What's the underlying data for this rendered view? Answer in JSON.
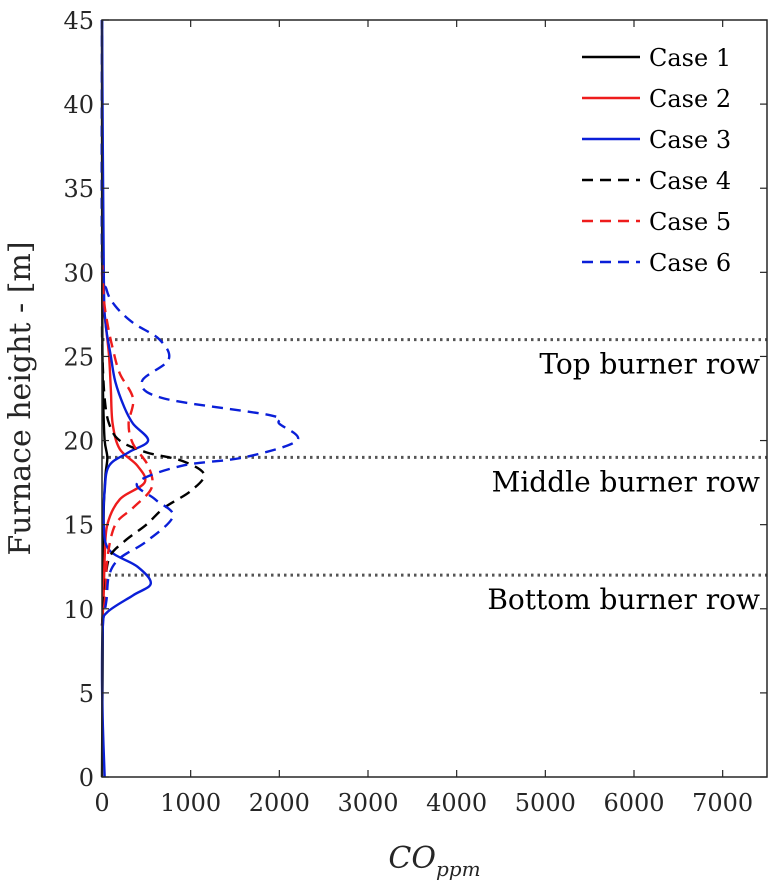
{
  "chart_data": {
    "type": "line",
    "xlabel_base": "CO",
    "xlabel_sub": "ppm",
    "ylabel": "Furnace height - [m]",
    "xlim": [
      0,
      7500
    ],
    "ylim": [
      0,
      45
    ],
    "xticks": [
      0,
      1000,
      2000,
      3000,
      4000,
      5000,
      6000,
      7000
    ],
    "yticks": [
      0,
      5,
      10,
      15,
      20,
      25,
      30,
      35,
      40,
      45
    ],
    "grid": false,
    "legend_position": "top-right",
    "reference_lines": [
      {
        "y": 26,
        "label": "Top burner row",
        "color": "#555555"
      },
      {
        "y": 19,
        "label": "Middle burner row",
        "color": "#555555"
      },
      {
        "y": 12,
        "label": "Bottom burner row",
        "color": "#555555"
      }
    ],
    "series": [
      {
        "name": "Case 1",
        "color": "#000000",
        "style": "solid",
        "points": [
          [
            0,
            0
          ],
          [
            5,
            5
          ],
          [
            10,
            10
          ],
          [
            15,
            13
          ],
          [
            20,
            16
          ],
          [
            40,
            18
          ],
          [
            60,
            19
          ],
          [
            30,
            20
          ],
          [
            15,
            22
          ],
          [
            5,
            25
          ],
          [
            2,
            30
          ],
          [
            0,
            45
          ]
        ]
      },
      {
        "name": "Case 2",
        "color": "#ee1c1c",
        "style": "solid",
        "points": [
          [
            0,
            9
          ],
          [
            20,
            11
          ],
          [
            30,
            13
          ],
          [
            60,
            15
          ],
          [
            200,
            16.5
          ],
          [
            480,
            17.5
          ],
          [
            400,
            18.5
          ],
          [
            200,
            19.5
          ],
          [
            120,
            21
          ],
          [
            100,
            23
          ],
          [
            80,
            25
          ],
          [
            50,
            26.5
          ],
          [
            20,
            28
          ],
          [
            0,
            30
          ]
        ]
      },
      {
        "name": "Case 3",
        "color": "#0a1fd8",
        "style": "solid",
        "points": [
          [
            30,
            0
          ],
          [
            10,
            3
          ],
          [
            0,
            6
          ],
          [
            10,
            9
          ],
          [
            60,
            9.8
          ],
          [
            350,
            10.8
          ],
          [
            550,
            11.5
          ],
          [
            400,
            12.5
          ],
          [
            80,
            13.5
          ],
          [
            20,
            15
          ],
          [
            30,
            17
          ],
          [
            80,
            18.5
          ],
          [
            300,
            19.3
          ],
          [
            520,
            20
          ],
          [
            350,
            21
          ],
          [
            250,
            22
          ],
          [
            150,
            23.5
          ],
          [
            100,
            25
          ],
          [
            40,
            27
          ],
          [
            20,
            30
          ],
          [
            0,
            45
          ]
        ]
      },
      {
        "name": "Case 4",
        "color": "#000000",
        "style": "dashed",
        "points": [
          [
            0,
            9
          ],
          [
            30,
            11
          ],
          [
            80,
            13
          ],
          [
            250,
            14
          ],
          [
            500,
            15
          ],
          [
            700,
            16
          ],
          [
            1000,
            17
          ],
          [
            1150,
            18
          ],
          [
            900,
            18.8
          ],
          [
            500,
            19.3
          ],
          [
            200,
            20
          ],
          [
            80,
            21
          ],
          [
            30,
            22.5
          ],
          [
            5,
            25
          ],
          [
            0,
            27
          ]
        ]
      },
      {
        "name": "Case 5",
        "color": "#ee1c1c",
        "style": "dashed",
        "points": [
          [
            0,
            9
          ],
          [
            40,
            11
          ],
          [
            60,
            13
          ],
          [
            150,
            15
          ],
          [
            350,
            16
          ],
          [
            560,
            17.2
          ],
          [
            520,
            18.5
          ],
          [
            350,
            19.8
          ],
          [
            300,
            21
          ],
          [
            350,
            22.5
          ],
          [
            200,
            24
          ],
          [
            120,
            25.5
          ],
          [
            60,
            27
          ],
          [
            20,
            28.5
          ],
          [
            0,
            31
          ]
        ]
      },
      {
        "name": "Case 6",
        "color": "#0a1fd8",
        "style": "dashed",
        "points": [
          [
            0,
            9
          ],
          [
            50,
            10.5
          ],
          [
            80,
            12
          ],
          [
            200,
            13
          ],
          [
            500,
            14
          ],
          [
            800,
            15.5
          ],
          [
            600,
            16.5
          ],
          [
            400,
            17.5
          ],
          [
            900,
            18.5
          ],
          [
            1600,
            19
          ],
          [
            2200,
            20
          ],
          [
            2000,
            21
          ],
          [
            1900,
            21.5
          ],
          [
            700,
            22.5
          ],
          [
            450,
            23.5
          ],
          [
            750,
            24.8
          ],
          [
            650,
            26
          ],
          [
            350,
            27
          ],
          [
            150,
            28
          ],
          [
            50,
            29
          ],
          [
            0,
            31
          ],
          [
            0,
            45
          ]
        ]
      }
    ]
  }
}
